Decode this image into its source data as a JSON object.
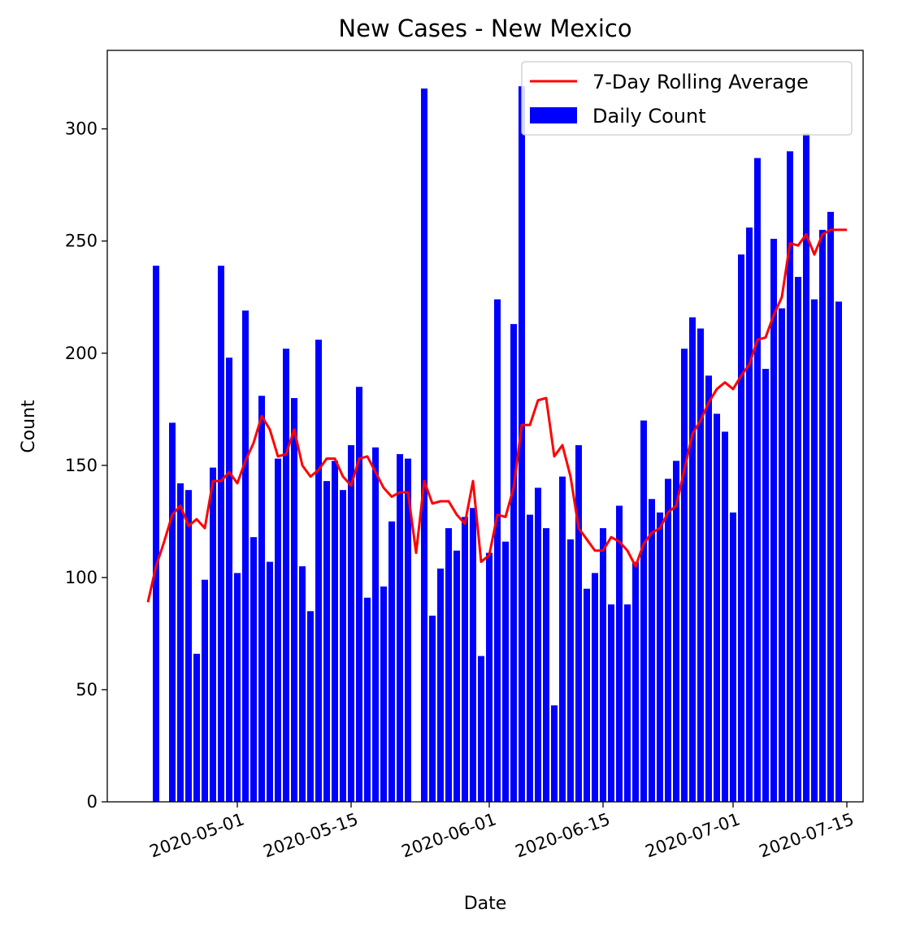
{
  "chart_data": {
    "type": "bar",
    "title": "New Cases - New Mexico",
    "xlabel": "Date",
    "ylabel": "Count",
    "x_start_date": "2020-04-20",
    "xlim": [
      "2020-04-15",
      "2020-07-17"
    ],
    "ylim": [
      0,
      335
    ],
    "grid": false,
    "legend_position": "top-right",
    "colors": {
      "bars": "#0000ff",
      "line": "#ff0000"
    },
    "x_ticks": [
      "2020-05-01",
      "2020-05-15",
      "2020-06-01",
      "2020-06-15",
      "2020-07-01",
      "2020-07-15"
    ],
    "y_ticks": [
      0,
      50,
      100,
      150,
      200,
      250,
      300
    ],
    "series": [
      {
        "name": "Daily Count",
        "type": "bar",
        "start_date": "2020-04-21",
        "values": [
          239,
          0,
          169,
          142,
          139,
          66,
          99,
          149,
          239,
          198,
          102,
          219,
          118,
          181,
          107,
          153,
          202,
          180,
          105,
          85,
          206,
          143,
          152,
          139,
          159,
          185,
          91,
          158,
          96,
          125,
          155,
          153,
          0,
          318,
          83,
          104,
          122,
          112,
          127,
          131,
          65,
          111,
          224,
          116,
          213,
          319,
          128,
          140,
          122,
          43,
          145,
          117,
          159,
          95,
          102,
          122,
          88,
          132,
          88,
          107,
          170,
          135,
          129,
          144,
          152,
          202,
          216,
          211,
          190,
          173,
          165,
          129,
          244,
          256,
          287,
          193,
          251,
          220,
          290,
          234,
          298,
          224,
          255,
          263,
          223
        ]
      },
      {
        "name": "7-Day Rolling Average",
        "type": "line",
        "start_date": "2020-04-20",
        "values": [
          89,
          105,
          116,
          128,
          132,
          123,
          126,
          122,
          143,
          143,
          147,
          142,
          152,
          160,
          172,
          166,
          154,
          155,
          166,
          150,
          145,
          148,
          153,
          153,
          145,
          141,
          153,
          154,
          147,
          140,
          136,
          138,
          138,
          111,
          143,
          133,
          134,
          134,
          128,
          124,
          143,
          107,
          110,
          128,
          127,
          140,
          168,
          168,
          179,
          180,
          154,
          159,
          145,
          122,
          117,
          112,
          112,
          118,
          116,
          112,
          105,
          115,
          120,
          122,
          129,
          132,
          148,
          164,
          170,
          178,
          184,
          187,
          184,
          190,
          195,
          206,
          207,
          217,
          225,
          249,
          248,
          253,
          244,
          253,
          255,
          255,
          255
        ]
      }
    ]
  }
}
